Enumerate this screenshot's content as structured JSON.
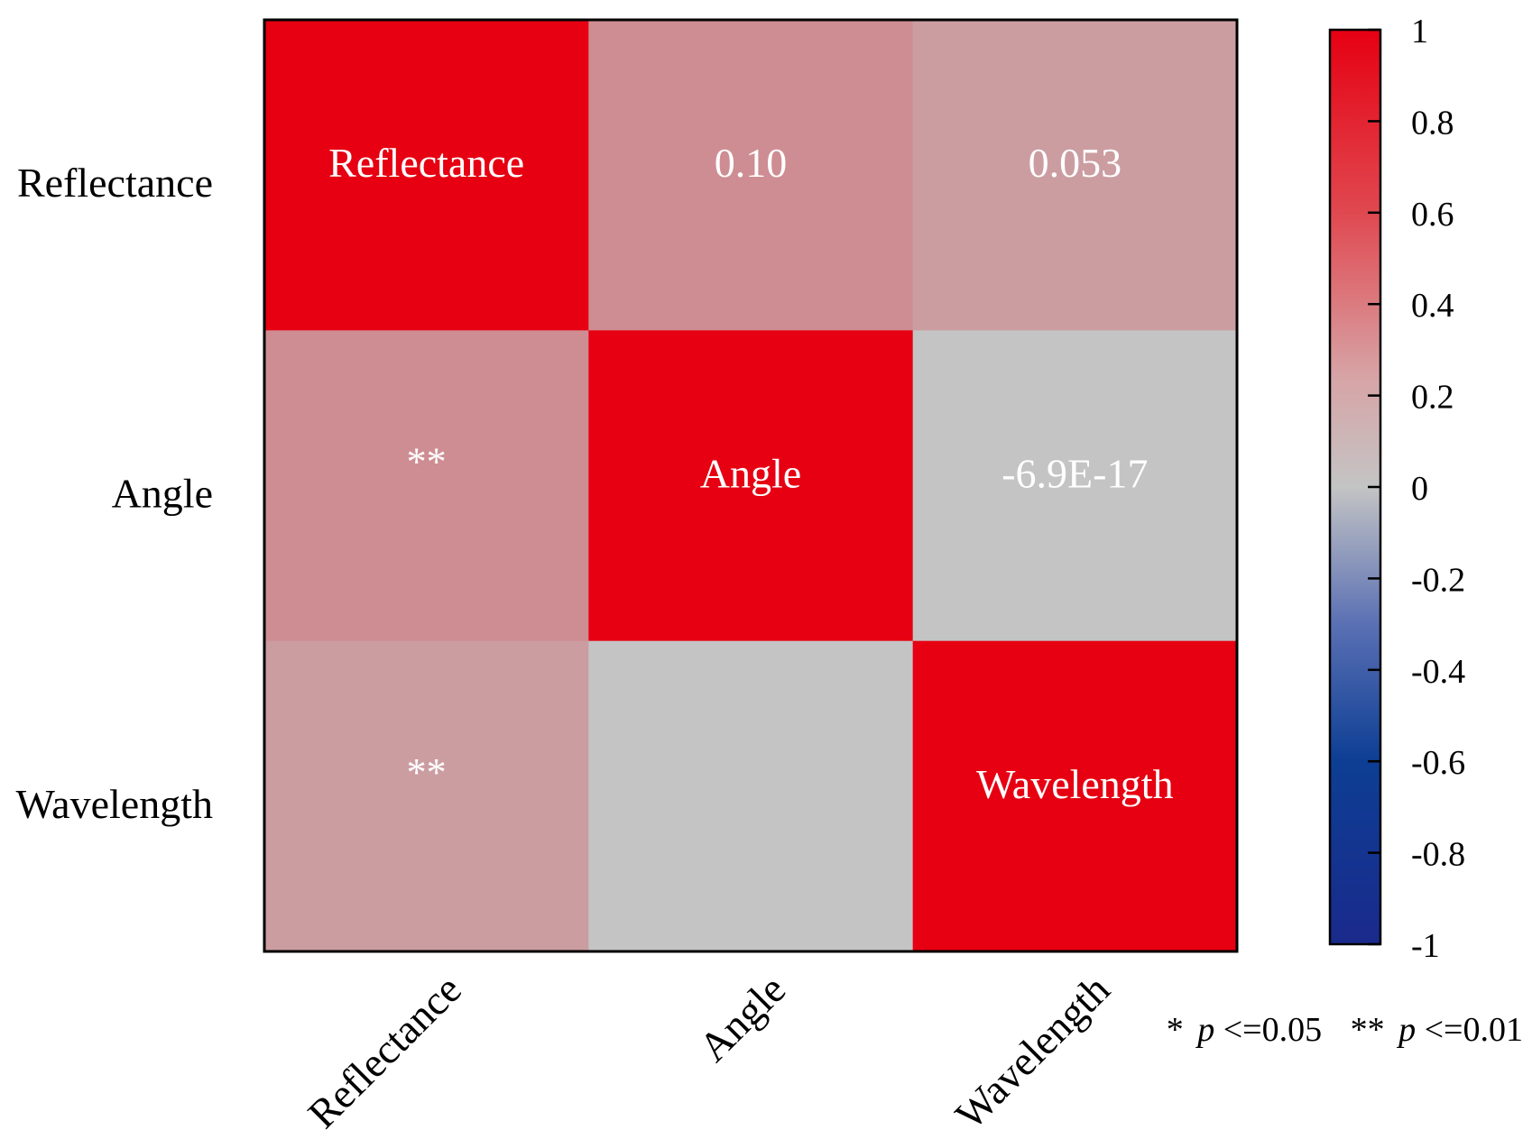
{
  "chart_data": {
    "type": "heatmap",
    "variables": [
      "Reflectance",
      "Angle",
      "Wavelength"
    ],
    "matrix": [
      [
        1,
        0.1,
        0.053
      ],
      [
        0.1,
        1,
        -6.9e-17
      ],
      [
        0.053,
        -6.9e-17,
        1
      ]
    ],
    "cell_text": [
      [
        "Reflectance",
        "0.10",
        "0.053"
      ],
      [
        "**",
        "Angle",
        "-6.9E-17"
      ],
      [
        "**",
        "",
        "Wavelength"
      ]
    ],
    "row_labels": [
      "Reflectance",
      "Angle",
      "Wavelength"
    ],
    "col_labels": [
      "Reflectance",
      "Angle",
      "Wavelength"
    ],
    "colorbar": {
      "range": [
        -1,
        1
      ],
      "ticks": [
        "1",
        "0.8",
        "0.6",
        "0.4",
        "0.2",
        "0",
        "-0.2",
        "-0.4",
        "-0.6",
        "-0.8",
        "-1"
      ],
      "colors": {
        "low": "#1a2a8c",
        "mid": "#c4c4c4",
        "high": "#e60012"
      }
    },
    "note": {
      "star1": "*",
      "p1": "p",
      "cond1": "<=0.05",
      "star2": "**",
      "p2": "p",
      "cond2": "<=0.01"
    }
  }
}
